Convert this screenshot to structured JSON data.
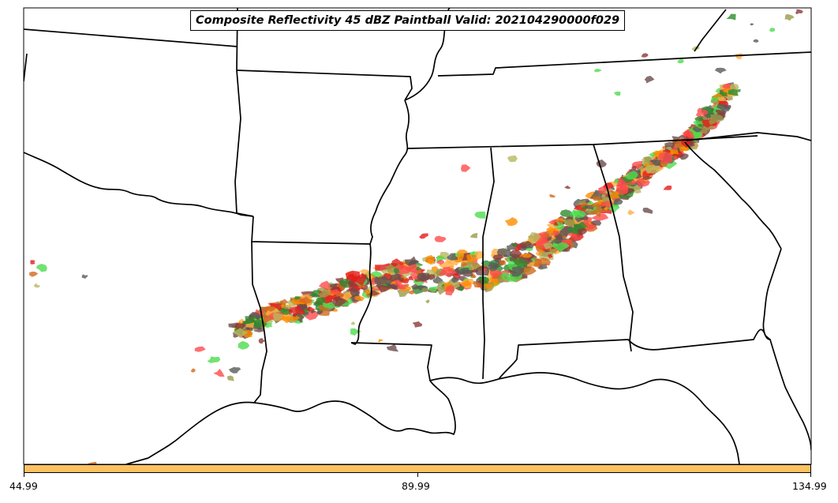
{
  "title": "Composite Reflectivity 45 dBZ Paintball Valid: 202104290000f029",
  "colorbar": {
    "color": "#fdc160",
    "tick_labels": [
      "44.99",
      "89.99",
      "134.99"
    ],
    "range": [
      44.99,
      134.99
    ]
  },
  "map": {
    "boundary_color": "#000000",
    "background": "#ffffff",
    "paintball_colors": [
      "#ff4b4b",
      "#e31a1c",
      "#ff8c00",
      "#ffae42",
      "#8b3a3a",
      "#6b4b4b",
      "#5a5a5a",
      "#2e8b2e",
      "#4ddc4d",
      "#9a9a4a",
      "#b8b860",
      "#d2691e"
    ]
  }
}
